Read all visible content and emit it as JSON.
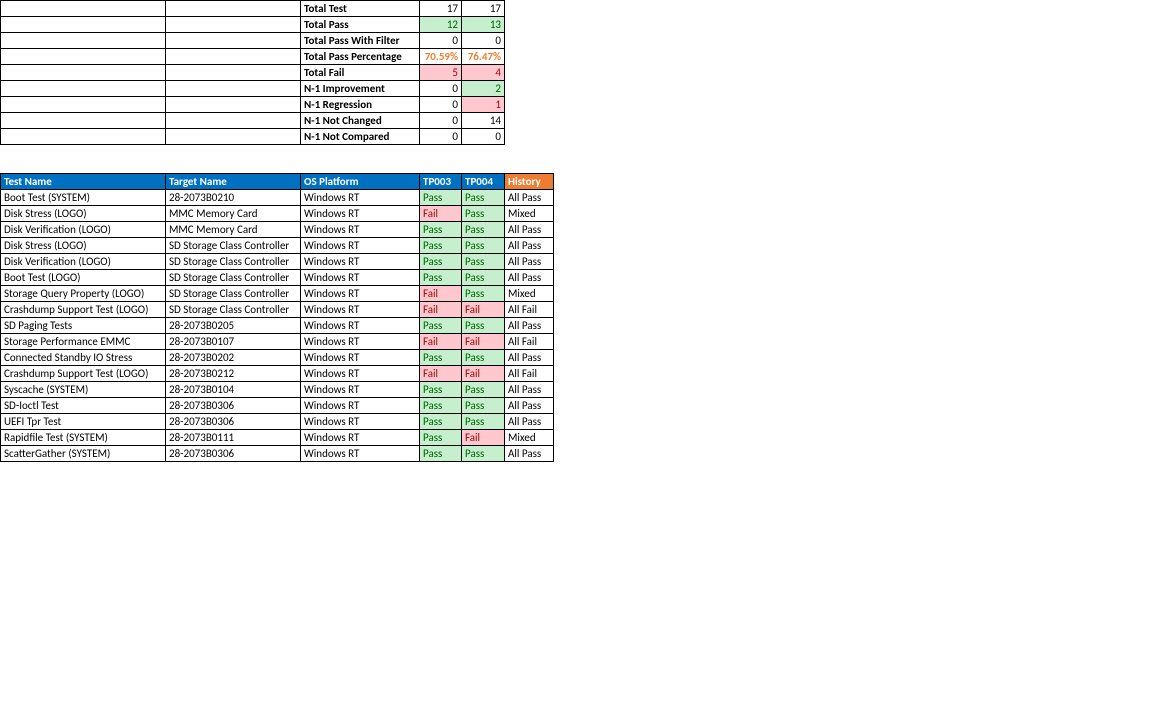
{
  "summary": {
    "rows": [
      {
        "label": "Total Test",
        "v1": "17",
        "v2": "17",
        "s1": "plain",
        "s2": "plain"
      },
      {
        "label": "Total Pass",
        "v1": "12",
        "v2": "13",
        "s1": "green",
        "s2": "green"
      },
      {
        "label": "Total Pass With Filter",
        "v1": "0",
        "v2": "0",
        "s1": "plain",
        "s2": "plain"
      },
      {
        "label": "Total Pass Percentage",
        "v1": "70.59%",
        "v2": "76.47%",
        "s1": "pct",
        "s2": "pct"
      },
      {
        "label": "Total Fail",
        "v1": "5",
        "v2": "4",
        "s1": "red",
        "s2": "red"
      },
      {
        "label": "N-1 Improvement",
        "v1": "0",
        "v2": "2",
        "s1": "plain",
        "s2": "green"
      },
      {
        "label": "N-1 Regression",
        "v1": "0",
        "v2": "1",
        "s1": "plain",
        "s2": "red"
      },
      {
        "label": "N-1 Not Changed",
        "v1": "0",
        "v2": "14",
        "s1": "plain",
        "s2": "plain"
      },
      {
        "label": "N-1 Not Compared",
        "v1": "0",
        "v2": "0",
        "s1": "plain",
        "s2": "plain"
      }
    ]
  },
  "results_header": {
    "test_name": "Test Name",
    "target_name": "Target Name",
    "os_platform": "OS Platform",
    "tp003": "TP003",
    "tp004": "TP004",
    "history": "History"
  },
  "results": [
    {
      "test": "Boot Test (SYSTEM)",
      "target": "28-2073B0210",
      "os": "Windows RT",
      "r1": "Pass",
      "r2": "Pass",
      "hist": "All Pass"
    },
    {
      "test": "Disk Stress (LOGO)",
      "target": "MMC Memory Card",
      "os": "Windows RT",
      "r1": "Fail",
      "r2": "Pass",
      "hist": "Mixed"
    },
    {
      "test": "Disk Verification (LOGO)",
      "target": "MMC Memory Card",
      "os": "Windows RT",
      "r1": "Pass",
      "r2": "Pass",
      "hist": "All Pass"
    },
    {
      "test": "Disk Stress (LOGO)",
      "target": "SD Storage Class Controller",
      "os": "Windows RT",
      "r1": "Pass",
      "r2": "Pass",
      "hist": "All Pass"
    },
    {
      "test": "Disk Verification (LOGO)",
      "target": "SD Storage Class Controller",
      "os": "Windows RT",
      "r1": "Pass",
      "r2": "Pass",
      "hist": "All Pass"
    },
    {
      "test": "Boot Test (LOGO)",
      "target": "SD Storage Class Controller",
      "os": "Windows RT",
      "r1": "Pass",
      "r2": "Pass",
      "hist": "All Pass"
    },
    {
      "test": "Storage Query Property (LOGO)",
      "target": "SD Storage Class Controller",
      "os": "Windows RT",
      "r1": "Fail",
      "r2": "Pass",
      "hist": "Mixed"
    },
    {
      "test": "Crashdump Support Test (LOGO)",
      "target": "SD Storage Class Controller",
      "os": "Windows RT",
      "r1": "Fail",
      "r2": "Fail",
      "hist": "All Fail"
    },
    {
      "test": "SD Paging Tests",
      "target": "28-2073B0205",
      "os": "Windows RT",
      "r1": "Pass",
      "r2": "Pass",
      "hist": "All Pass"
    },
    {
      "test": "Storage Performance EMMC",
      "target": "28-2073B0107",
      "os": "Windows RT",
      "r1": "Fail",
      "r2": "Fail",
      "hist": "All Fail"
    },
    {
      "test": "Connected Standby IO Stress",
      "target": "28-2073B0202",
      "os": "Windows RT",
      "r1": "Pass",
      "r2": "Pass",
      "hist": "All Pass"
    },
    {
      "test": "Crashdump Support Test (LOGO)",
      "target": "28-2073B0212",
      "os": "Windows RT",
      "r1": "Fail",
      "r2": "Fail",
      "hist": "All Fail"
    },
    {
      "test": "Syscache (SYSTEM)",
      "target": "28-2073B0104",
      "os": "Windows RT",
      "r1": "Pass",
      "r2": "Pass",
      "hist": "All Pass"
    },
    {
      "test": "SD-Ioctl Test",
      "target": "28-2073B0306",
      "os": "Windows RT",
      "r1": "Pass",
      "r2": "Pass",
      "hist": "All Pass"
    },
    {
      "test": "UEFI Tpr Test",
      "target": "28-2073B0306",
      "os": "Windows RT",
      "r1": "Pass",
      "r2": "Pass",
      "hist": "All Pass"
    },
    {
      "test": "Rapidfile Test (SYSTEM)",
      "target": "28-2073B0111",
      "os": "Windows RT",
      "r1": "Pass",
      "r2": "Fail",
      "hist": "Mixed"
    },
    {
      "test": "ScatterGather (SYSTEM)",
      "target": "28-2073B0306",
      "os": "Windows RT",
      "r1": "Pass",
      "r2": "Pass",
      "hist": "All Pass"
    }
  ],
  "colors": {
    "header_blue": "#0070c0",
    "header_orange": "#ed7d31",
    "pass_bg": "#c6efce",
    "pass_fg": "#006100",
    "fail_bg": "#ffc7ce",
    "fail_fg": "#9c0006",
    "pct_fg": "#ed7d31",
    "border": "#000000",
    "background": "#ffffff"
  }
}
